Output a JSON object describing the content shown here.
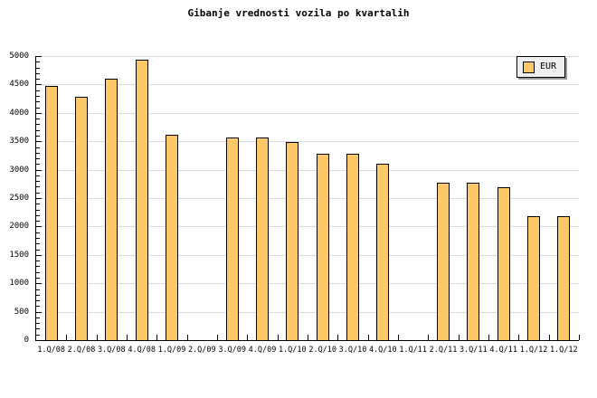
{
  "chart_data": {
    "type": "bar",
    "title": "Gibanje vrednosti vozila po kvartalih",
    "categories": [
      "1.Q/08",
      "2.Q/08",
      "3.Q/08",
      "4.Q/08",
      "1.Q/09",
      "2.Q/09",
      "3.Q/09",
      "4.Q/09",
      "1.Q/10",
      "2.Q/10",
      "3.Q/10",
      "4.Q/10",
      "1.Q/11",
      "2.Q/11",
      "3.Q/11",
      "4.Q/11",
      "1.Q/12",
      "1.Q/12"
    ],
    "series": [
      {
        "name": "EUR",
        "values": [
          4470,
          4290,
          4600,
          4940,
          3620,
          null,
          3560,
          3560,
          3490,
          3280,
          3280,
          3100,
          null,
          2770,
          2770,
          2690,
          2180,
          2180
        ]
      }
    ],
    "xlabel": "",
    "ylabel": "",
    "ylim": [
      0,
      5000
    ],
    "ytick_major": 500,
    "ytick_minor": 100,
    "grid": "horizontal",
    "legend": {
      "label": "EUR",
      "position": "top-right"
    },
    "colors": {
      "bar_fill": "#FDC868",
      "bar_border": "#000000",
      "grid": "#DDDDDD",
      "axis": "#000000",
      "legend_bg": "#EFEFEF",
      "legend_border": "#000000",
      "legend_shadow": "#999999",
      "title": "#000000",
      "background": "#FFFFFF"
    }
  }
}
